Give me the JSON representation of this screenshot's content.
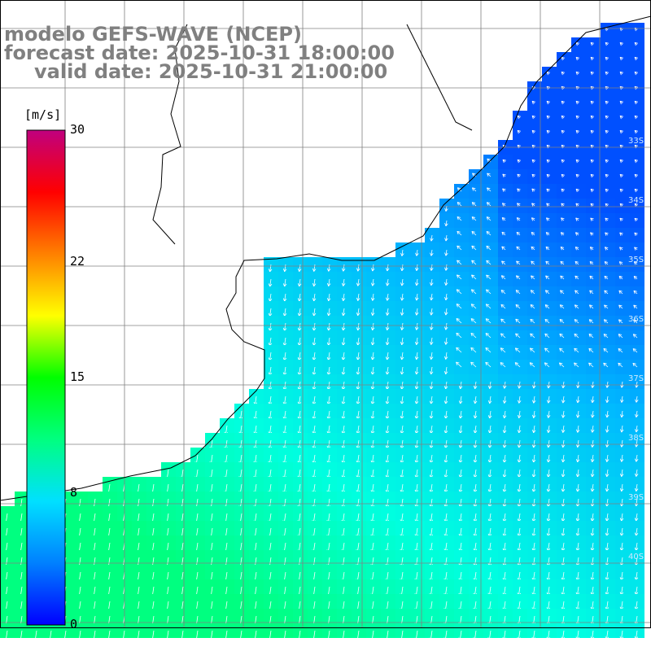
{
  "title": {
    "line1": "modelo GEFS-WAVE (NCEP)",
    "line2": "forecast date: 2025-10-31 18:00:00",
    "line3": "valid date: 2025-10-31 21:00:00"
  },
  "colorbar": {
    "unit": "[m/s]",
    "min": 0,
    "max": 30,
    "ticks": [
      {
        "label": "30",
        "value": 30
      },
      {
        "label": "22",
        "value": 22
      },
      {
        "label": "15",
        "value": 15
      },
      {
        "label": "8",
        "value": 8
      },
      {
        "label": "0",
        "value": 0
      }
    ],
    "colors": [
      "#0000ff",
      "#0080ff",
      "#00e0ff",
      "#00ff80",
      "#00ff00",
      "#ffff00",
      "#ff8000",
      "#ff0000",
      "#c0007f"
    ]
  },
  "map": {
    "latitude_labels": [
      "33S",
      "34S",
      "35S",
      "36S",
      "37S",
      "38S",
      "39S",
      "40S"
    ],
    "wind_field": {
      "description_units": "m/s",
      "ocean_color_low": "#0050ff",
      "ocean_color_mid": "#00ffff",
      "ocean_color_high": "#00ff80",
      "grid_color": "#808080",
      "coast_color": "#000000",
      "arrow_color": "#ffffff"
    }
  }
}
